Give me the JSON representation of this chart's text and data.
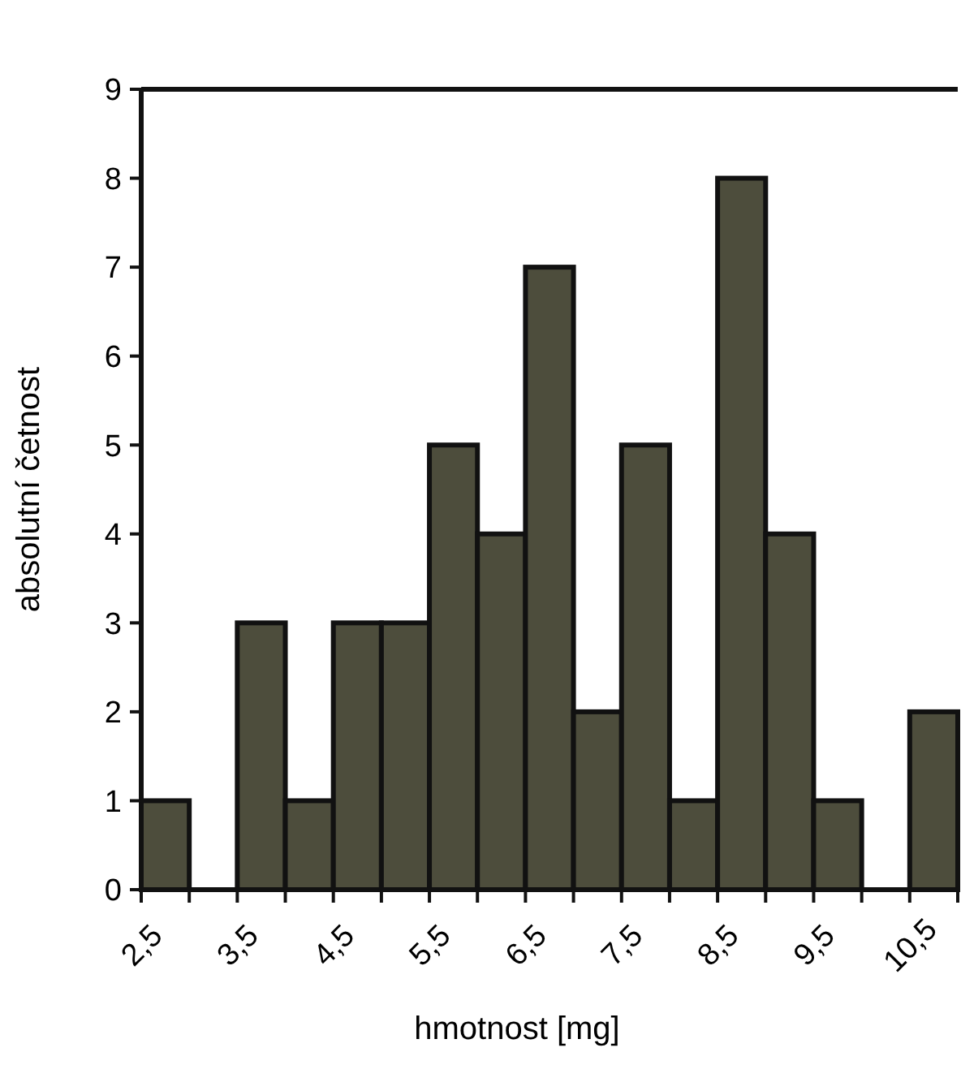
{
  "chart_data": {
    "type": "histogram",
    "xlabel": "hmotnost [mg]",
    "ylabel": "absolutní četnost",
    "bins": [
      2.5,
      3,
      3.5,
      4,
      4.5,
      5,
      5.5,
      6,
      6.5,
      7,
      7.5,
      8,
      8.5,
      9,
      9.5,
      10,
      10.5,
      11
    ],
    "values": [
      1,
      0,
      3,
      1,
      3,
      3,
      5,
      4,
      7,
      2,
      5,
      1,
      8,
      4,
      1,
      0,
      2
    ],
    "color": "#4d4d3c",
    "xlim": [
      2.5,
      11
    ],
    "xticks": [
      {
        "value": 2.5,
        "label": "2,5"
      },
      {
        "value": 3,
        "label": null
      },
      {
        "value": 3.5,
        "label": "3,5"
      },
      {
        "value": 4,
        "label": null
      },
      {
        "value": 4.5,
        "label": "4,5"
      },
      {
        "value": 5,
        "label": null
      },
      {
        "value": 5.5,
        "label": "5,5"
      },
      {
        "value": 6,
        "label": null
      },
      {
        "value": 6.5,
        "label": "6,5"
      },
      {
        "value": 7,
        "label": null
      },
      {
        "value": 7.5,
        "label": "7,5"
      },
      {
        "value": 8,
        "label": null
      },
      {
        "value": 8.5,
        "label": "8,5"
      },
      {
        "value": 9,
        "label": null
      },
      {
        "value": 9.5,
        "label": "9,5"
      },
      {
        "value": 10,
        "label": null
      },
      {
        "value": 10.5,
        "label": "10,5"
      },
      {
        "value": 11,
        "label": null
      }
    ],
    "ylim": [
      0,
      9
    ],
    "yticks": [
      0,
      1,
      2,
      3,
      4,
      5,
      6,
      7,
      8,
      9
    ],
    "grid": false
  }
}
